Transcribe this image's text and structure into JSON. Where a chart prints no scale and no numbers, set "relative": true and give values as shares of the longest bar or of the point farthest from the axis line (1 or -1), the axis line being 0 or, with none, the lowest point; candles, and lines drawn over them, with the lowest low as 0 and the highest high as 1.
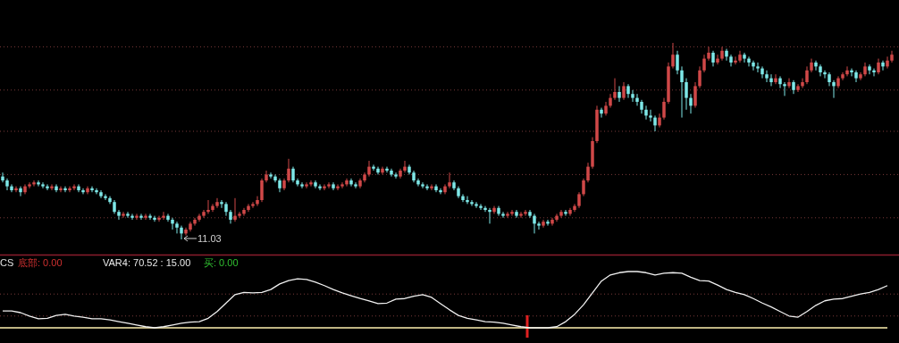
{
  "chart_data": [
    {
      "type": "candlestick",
      "relative": true,
      "ref_lines": [
        {
          "axis": "y",
          "value": 0.98,
          "color": "#7a3a3a",
          "line_style": "dotted"
        },
        {
          "axis": "y",
          "value": 0.76,
          "color": "#7a3a3a",
          "line_style": "dotted"
        },
        {
          "axis": "y",
          "value": 0.55,
          "color": "#7a3a3a",
          "line_style": "dotted"
        },
        {
          "axis": "y",
          "value": 0.33,
          "color": "#7a3a3a",
          "line_style": "dotted"
        },
        {
          "axis": "y",
          "value": 0.11,
          "color": "#7a3a3a",
          "line_style": "dotted"
        }
      ],
      "colors": [
        "#7ee8e8",
        "#7ee8e8",
        "#7ee8e8",
        "#d04848",
        "#7ee8e8",
        "#d04848",
        "#d04848",
        "#d04848",
        "#7ee8e8",
        "#7ee8e8",
        "#7ee8e8",
        "#d04848",
        "#7ee8e8",
        "#d04848",
        "#7ee8e8",
        "#d04848",
        "#d04848",
        "#7ee8e8",
        "#7ee8e8",
        "#d04848",
        "#7ee8e8",
        "#7ee8e8",
        "#7ee8e8",
        "#7ee8e8",
        "#7ee8e8",
        "#7ee8e8",
        "#7ee8e8",
        "#d04848",
        "#7ee8e8",
        "#7ee8e8",
        "#d04848",
        "#7ee8e8",
        "#d04848",
        "#7ee8e8",
        "#7ee8e8",
        "#d04848",
        "#d04848",
        "#7ee8e8",
        "#7ee8e8",
        "#7ee8e8",
        "#7ee8e8",
        "#d04848",
        "#d04848",
        "#d04848",
        "#d04848",
        "#d04848",
        "#d04848",
        "#d04848",
        "#d04848",
        "#7ee8e8",
        "#7ee8e8",
        "#7ee8e8",
        "#d04848",
        "#d04848",
        "#d04848",
        "#d04848",
        "#d04848",
        "#d04848",
        "#d04848",
        "#d04848",
        "#7ee8e8",
        "#7ee8e8",
        "#7ee8e8",
        "#d04848",
        "#d04848",
        "#7ee8e8",
        "#7ee8e8",
        "#7ee8e8",
        "#d04848",
        "#d04848",
        "#7ee8e8",
        "#7ee8e8",
        "#d04848",
        "#d04848",
        "#7ee8e8",
        "#d04848",
        "#d04848",
        "#d04848",
        "#7ee8e8",
        "#7ee8e8",
        "#d04848",
        "#d04848",
        "#d04848",
        "#7ee8e8",
        "#7ee8e8",
        "#d04848",
        "#7ee8e8",
        "#7ee8e8",
        "#7ee8e8",
        "#d04848",
        "#d04848",
        "#7ee8e8",
        "#7ee8e8",
        "#7ee8e8",
        "#7ee8e8",
        "#7ee8e8",
        "#d04848",
        "#7ee8e8",
        "#7ee8e8",
        "#d04848",
        "#d04848",
        "#7ee8e8",
        "#7ee8e8",
        "#7ee8e8",
        "#7ee8e8",
        "#7ee8e8",
        "#7ee8e8",
        "#7ee8e8",
        "#7ee8e8",
        "#7ee8e8",
        "#d04848",
        "#7ee8e8",
        "#7ee8e8",
        "#d04848",
        "#d04848",
        "#7ee8e8",
        "#d04848",
        "#d04848",
        "#7ee8e8",
        "#7ee8e8",
        "#7ee8e8",
        "#d04848",
        "#7ee8e8",
        "#d04848",
        "#d04848",
        "#d04848",
        "#7ee8e8",
        "#d04848",
        "#d04848",
        "#d04848",
        "#d04848",
        "#d04848",
        "#d04848",
        "#d04848",
        "#7ee8e8",
        "#d04848",
        "#d04848",
        "#d04848",
        "#7ee8e8",
        "#d04848",
        "#7ee8e8",
        "#7ee8e8",
        "#7ee8e8",
        "#7ee8e8",
        "#7ee8e8",
        "#7ee8e8",
        "#7ee8e8",
        "#d04848",
        "#d04848",
        "#d04848",
        "#d04848",
        "#7ee8e8",
        "#7ee8e8",
        "#7ee8e8",
        "#7ee8e8",
        "#d04848",
        "#d04848",
        "#d04848",
        "#d04848",
        "#7ee8e8",
        "#d04848",
        "#d04848",
        "#7ee8e8",
        "#7ee8e8",
        "#d04848",
        "#d04848",
        "#7ee8e8",
        "#7ee8e8",
        "#7ee8e8",
        "#7ee8e8",
        "#7ee8e8",
        "#7ee8e8",
        "#7ee8e8",
        "#d04848",
        "#7ee8e8",
        "#7ee8e8",
        "#d04848",
        "#7ee8e8",
        "#d04848",
        "#d04848",
        "#d04848",
        "#d04848",
        "#7ee8e8",
        "#7ee8e8",
        "#7ee8e8",
        "#7ee8e8",
        "#7ee8e8",
        "#d04848",
        "#d04848",
        "#d04848",
        "#7ee8e8",
        "#7ee8e8",
        "#d04848",
        "#d04848",
        "#7ee8e8",
        "#7ee8e8",
        "#d04848",
        "#7ee8e8",
        "#d04848",
        "#d04848"
      ],
      "categories": [
        null,
        null,
        null,
        null,
        null,
        null,
        null,
        null,
        null,
        null,
        null,
        null,
        null,
        null,
        null,
        null,
        null,
        null,
        null,
        null,
        null,
        null,
        null,
        null,
        null,
        null,
        null,
        null,
        null,
        null,
        null,
        null,
        null,
        null,
        null,
        null,
        null,
        null,
        null,
        null,
        null,
        null,
        null,
        null,
        null,
        null,
        null,
        null,
        null,
        null,
        null,
        null,
        null,
        null,
        null,
        null,
        null,
        null,
        null,
        null,
        null,
        null,
        null,
        null,
        null,
        null,
        null,
        null,
        null,
        null,
        null,
        null,
        null,
        null,
        null,
        null,
        null,
        null,
        null,
        null,
        null,
        null,
        null,
        null,
        null,
        null,
        null,
        null,
        null,
        null,
        null,
        null,
        null,
        null,
        null,
        null,
        null,
        null,
        null,
        null,
        null,
        null,
        null,
        null,
        null,
        null,
        null,
        null,
        null,
        null,
        null,
        null,
        null,
        null,
        null,
        null,
        null,
        null,
        null,
        null,
        null,
        null,
        null,
        null,
        null,
        null,
        null,
        null,
        null,
        null,
        null,
        null,
        null,
        null,
        null,
        null,
        null,
        null,
        null,
        null,
        null,
        null,
        null,
        null,
        null,
        null,
        null,
        null,
        null,
        null,
        null,
        null,
        null,
        null,
        null,
        null,
        null,
        null,
        null,
        null,
        null,
        null,
        null,
        null,
        null,
        null,
        null,
        null,
        null,
        null,
        null,
        null,
        null,
        null,
        null,
        null,
        null,
        null,
        null,
        null,
        null,
        null,
        null,
        null,
        null,
        null,
        null,
        null,
        null,
        null,
        null,
        null,
        null,
        null,
        null,
        null,
        null,
        null,
        null,
        null
      ],
      "ohlc": [
        [
          0.32,
          0.34,
          0.29,
          0.3
        ],
        [
          0.3,
          0.31,
          0.25,
          0.27
        ],
        [
          0.27,
          0.28,
          0.24,
          0.25
        ],
        [
          0.25,
          0.27,
          0.24,
          0.26
        ],
        [
          0.26,
          0.27,
          0.22,
          0.24
        ],
        [
          0.24,
          0.28,
          0.23,
          0.27
        ],
        [
          0.27,
          0.29,
          0.26,
          0.28
        ],
        [
          0.28,
          0.3,
          0.27,
          0.29
        ],
        [
          0.29,
          0.3,
          0.27,
          0.28
        ],
        [
          0.28,
          0.29,
          0.26,
          0.27
        ],
        [
          0.27,
          0.28,
          0.25,
          0.26
        ],
        [
          0.26,
          0.28,
          0.25,
          0.27
        ],
        [
          0.27,
          0.28,
          0.24,
          0.25
        ],
        [
          0.25,
          0.27,
          0.24,
          0.26
        ],
        [
          0.26,
          0.27,
          0.24,
          0.25
        ],
        [
          0.25,
          0.27,
          0.24,
          0.26
        ],
        [
          0.26,
          0.28,
          0.25,
          0.27
        ],
        [
          0.27,
          0.28,
          0.24,
          0.25
        ],
        [
          0.25,
          0.26,
          0.23,
          0.24
        ],
        [
          0.24,
          0.27,
          0.23,
          0.26
        ],
        [
          0.26,
          0.27,
          0.24,
          0.25
        ],
        [
          0.25,
          0.26,
          0.23,
          0.24
        ],
        [
          0.24,
          0.25,
          0.21,
          0.22
        ],
        [
          0.22,
          0.23,
          0.2,
          0.21
        ],
        [
          0.21,
          0.22,
          0.18,
          0.19
        ],
        [
          0.19,
          0.2,
          0.13,
          0.14
        ],
        [
          0.14,
          0.15,
          0.1,
          0.12
        ],
        [
          0.12,
          0.14,
          0.11,
          0.13
        ],
        [
          0.13,
          0.14,
          0.11,
          0.12
        ],
        [
          0.12,
          0.13,
          0.1,
          0.11
        ],
        [
          0.11,
          0.13,
          0.1,
          0.12
        ],
        [
          0.12,
          0.13,
          0.1,
          0.11
        ],
        [
          0.11,
          0.13,
          0.1,
          0.12
        ],
        [
          0.12,
          0.13,
          0.1,
          0.11
        ],
        [
          0.11,
          0.12,
          0.09,
          0.1
        ],
        [
          0.1,
          0.12,
          0.09,
          0.11
        ],
        [
          0.11,
          0.14,
          0.1,
          0.12
        ],
        [
          0.12,
          0.13,
          0.09,
          0.1
        ],
        [
          0.1,
          0.11,
          0.05,
          0.08
        ],
        [
          0.08,
          0.09,
          0.03,
          0.06
        ],
        [
          0.06,
          0.07,
          0.0,
          0.03
        ],
        [
          0.03,
          0.06,
          0.02,
          0.05
        ],
        [
          0.05,
          0.09,
          0.04,
          0.08
        ],
        [
          0.08,
          0.11,
          0.07,
          0.1
        ],
        [
          0.1,
          0.13,
          0.09,
          0.12
        ],
        [
          0.12,
          0.15,
          0.11,
          0.14
        ],
        [
          0.14,
          0.2,
          0.13,
          0.15
        ],
        [
          0.15,
          0.18,
          0.14,
          0.17
        ],
        [
          0.17,
          0.21,
          0.16,
          0.19
        ],
        [
          0.19,
          0.2,
          0.16,
          0.18
        ],
        [
          0.18,
          0.19,
          0.12,
          0.14
        ],
        [
          0.14,
          0.15,
          0.08,
          0.1
        ],
        [
          0.1,
          0.21,
          0.09,
          0.12
        ],
        [
          0.12,
          0.14,
          0.11,
          0.13
        ],
        [
          0.13,
          0.16,
          0.12,
          0.15
        ],
        [
          0.15,
          0.18,
          0.14,
          0.17
        ],
        [
          0.17,
          0.19,
          0.16,
          0.18
        ],
        [
          0.18,
          0.22,
          0.17,
          0.2
        ],
        [
          0.2,
          0.31,
          0.19,
          0.3
        ],
        [
          0.3,
          0.35,
          0.29,
          0.33
        ],
        [
          0.33,
          0.34,
          0.31,
          0.32
        ],
        [
          0.32,
          0.33,
          0.29,
          0.3
        ],
        [
          0.3,
          0.31,
          0.24,
          0.26
        ],
        [
          0.26,
          0.31,
          0.25,
          0.3
        ],
        [
          0.3,
          0.41,
          0.29,
          0.36
        ],
        [
          0.36,
          0.37,
          0.29,
          0.3
        ],
        [
          0.3,
          0.31,
          0.27,
          0.28
        ],
        [
          0.28,
          0.29,
          0.26,
          0.27
        ],
        [
          0.27,
          0.29,
          0.26,
          0.28
        ],
        [
          0.28,
          0.3,
          0.27,
          0.29
        ],
        [
          0.29,
          0.3,
          0.26,
          0.27
        ],
        [
          0.27,
          0.28,
          0.25,
          0.26
        ],
        [
          0.26,
          0.28,
          0.25,
          0.27
        ],
        [
          0.27,
          0.29,
          0.26,
          0.28
        ],
        [
          0.28,
          0.29,
          0.25,
          0.26
        ],
        [
          0.26,
          0.28,
          0.25,
          0.27
        ],
        [
          0.27,
          0.29,
          0.26,
          0.28
        ],
        [
          0.28,
          0.31,
          0.27,
          0.3
        ],
        [
          0.3,
          0.31,
          0.27,
          0.28
        ],
        [
          0.28,
          0.29,
          0.26,
          0.27
        ],
        [
          0.27,
          0.31,
          0.26,
          0.3
        ],
        [
          0.3,
          0.34,
          0.29,
          0.33
        ],
        [
          0.33,
          0.4,
          0.32,
          0.37
        ],
        [
          0.37,
          0.38,
          0.35,
          0.36
        ],
        [
          0.36,
          0.37,
          0.33,
          0.34
        ],
        [
          0.34,
          0.37,
          0.33,
          0.36
        ],
        [
          0.36,
          0.37,
          0.34,
          0.35
        ],
        [
          0.35,
          0.36,
          0.32,
          0.33
        ],
        [
          0.33,
          0.34,
          0.31,
          0.32
        ],
        [
          0.32,
          0.36,
          0.31,
          0.35
        ],
        [
          0.35,
          0.4,
          0.34,
          0.37
        ],
        [
          0.37,
          0.38,
          0.33,
          0.34
        ],
        [
          0.34,
          0.35,
          0.29,
          0.3
        ],
        [
          0.3,
          0.31,
          0.27,
          0.28
        ],
        [
          0.28,
          0.29,
          0.26,
          0.27
        ],
        [
          0.27,
          0.28,
          0.25,
          0.26
        ],
        [
          0.26,
          0.28,
          0.25,
          0.27
        ],
        [
          0.27,
          0.28,
          0.24,
          0.25
        ],
        [
          0.25,
          0.26,
          0.23,
          0.24
        ],
        [
          0.24,
          0.28,
          0.23,
          0.27
        ],
        [
          0.27,
          0.34,
          0.26,
          0.29
        ],
        [
          0.29,
          0.3,
          0.25,
          0.26
        ],
        [
          0.26,
          0.27,
          0.21,
          0.22
        ],
        [
          0.22,
          0.23,
          0.19,
          0.2
        ],
        [
          0.2,
          0.22,
          0.18,
          0.19
        ],
        [
          0.19,
          0.2,
          0.17,
          0.18
        ],
        [
          0.18,
          0.19,
          0.16,
          0.17
        ],
        [
          0.17,
          0.18,
          0.15,
          0.16
        ],
        [
          0.16,
          0.17,
          0.14,
          0.15
        ],
        [
          0.15,
          0.16,
          0.08,
          0.14
        ],
        [
          0.14,
          0.17,
          0.13,
          0.16
        ],
        [
          0.16,
          0.17,
          0.12,
          0.13
        ],
        [
          0.13,
          0.14,
          0.11,
          0.12
        ],
        [
          0.12,
          0.14,
          0.11,
          0.13
        ],
        [
          0.13,
          0.15,
          0.12,
          0.14
        ],
        [
          0.14,
          0.15,
          0.11,
          0.12
        ],
        [
          0.12,
          0.14,
          0.11,
          0.13
        ],
        [
          0.13,
          0.15,
          0.12,
          0.14
        ],
        [
          0.14,
          0.15,
          0.11,
          0.12
        ],
        [
          0.12,
          0.13,
          0.03,
          0.08
        ],
        [
          0.08,
          0.09,
          0.05,
          0.07
        ],
        [
          0.07,
          0.1,
          0.06,
          0.09
        ],
        [
          0.09,
          0.1,
          0.07,
          0.08
        ],
        [
          0.08,
          0.11,
          0.07,
          0.1
        ],
        [
          0.1,
          0.13,
          0.09,
          0.12
        ],
        [
          0.12,
          0.15,
          0.11,
          0.14
        ],
        [
          0.14,
          0.15,
          0.12,
          0.13
        ],
        [
          0.13,
          0.16,
          0.12,
          0.15
        ],
        [
          0.15,
          0.18,
          0.14,
          0.17
        ],
        [
          0.17,
          0.24,
          0.16,
          0.23
        ],
        [
          0.23,
          0.31,
          0.22,
          0.3
        ],
        [
          0.3,
          0.39,
          0.29,
          0.37
        ],
        [
          0.37,
          0.52,
          0.36,
          0.5
        ],
        [
          0.5,
          0.68,
          0.49,
          0.66
        ],
        [
          0.66,
          0.67,
          0.62,
          0.64
        ],
        [
          0.64,
          0.7,
          0.63,
          0.68
        ],
        [
          0.68,
          0.74,
          0.67,
          0.72
        ],
        [
          0.72,
          0.82,
          0.71,
          0.75
        ],
        [
          0.75,
          0.78,
          0.7,
          0.72
        ],
        [
          0.72,
          0.8,
          0.71,
          0.78
        ],
        [
          0.78,
          0.79,
          0.72,
          0.74
        ],
        [
          0.74,
          0.76,
          0.7,
          0.72
        ],
        [
          0.72,
          0.74,
          0.68,
          0.7
        ],
        [
          0.7,
          0.71,
          0.64,
          0.66
        ],
        [
          0.66,
          0.68,
          0.61,
          0.63
        ],
        [
          0.63,
          0.66,
          0.6,
          0.62
        ],
        [
          0.62,
          0.63,
          0.55,
          0.58
        ],
        [
          0.58,
          0.64,
          0.57,
          0.62
        ],
        [
          0.62,
          0.72,
          0.61,
          0.7
        ],
        [
          0.7,
          0.9,
          0.69,
          0.88
        ],
        [
          0.88,
          1.0,
          0.87,
          0.94
        ],
        [
          0.94,
          0.96,
          0.84,
          0.86
        ],
        [
          0.86,
          0.88,
          0.62,
          0.8
        ],
        [
          0.8,
          0.82,
          0.66,
          0.72
        ],
        [
          0.72,
          0.74,
          0.64,
          0.68
        ],
        [
          0.68,
          0.8,
          0.67,
          0.78
        ],
        [
          0.78,
          0.88,
          0.77,
          0.86
        ],
        [
          0.86,
          0.94,
          0.85,
          0.92
        ],
        [
          0.92,
          0.98,
          0.91,
          0.95
        ],
        [
          0.95,
          0.96,
          0.88,
          0.9
        ],
        [
          0.9,
          0.94,
          0.89,
          0.92
        ],
        [
          0.92,
          0.98,
          0.91,
          0.96
        ],
        [
          0.96,
          0.97,
          0.91,
          0.93
        ],
        [
          0.93,
          0.94,
          0.88,
          0.9
        ],
        [
          0.9,
          0.93,
          0.89,
          0.91
        ],
        [
          0.91,
          0.96,
          0.9,
          0.94
        ],
        [
          0.94,
          0.95,
          0.9,
          0.92
        ],
        [
          0.92,
          0.93,
          0.88,
          0.9
        ],
        [
          0.9,
          0.91,
          0.86,
          0.88
        ],
        [
          0.88,
          0.9,
          0.85,
          0.87
        ],
        [
          0.87,
          0.88,
          0.82,
          0.84
        ],
        [
          0.84,
          0.86,
          0.8,
          0.82
        ],
        [
          0.82,
          0.84,
          0.78,
          0.8
        ],
        [
          0.8,
          0.84,
          0.79,
          0.82
        ],
        [
          0.82,
          0.83,
          0.77,
          0.79
        ],
        [
          0.79,
          0.8,
          0.73,
          0.78
        ],
        [
          0.78,
          0.82,
          0.77,
          0.8
        ],
        [
          0.8,
          0.81,
          0.74,
          0.76
        ],
        [
          0.76,
          0.79,
          0.75,
          0.78
        ],
        [
          0.78,
          0.82,
          0.77,
          0.8
        ],
        [
          0.8,
          0.88,
          0.79,
          0.86
        ],
        [
          0.86,
          0.92,
          0.85,
          0.9
        ],
        [
          0.9,
          0.91,
          0.86,
          0.88
        ],
        [
          0.88,
          0.89,
          0.83,
          0.85
        ],
        [
          0.85,
          0.86,
          0.82,
          0.84
        ],
        [
          0.84,
          0.85,
          0.78,
          0.8
        ],
        [
          0.8,
          0.81,
          0.72,
          0.78
        ],
        [
          0.78,
          0.83,
          0.77,
          0.82
        ],
        [
          0.82,
          0.85,
          0.81,
          0.84
        ],
        [
          0.84,
          0.88,
          0.83,
          0.86
        ],
        [
          0.86,
          0.87,
          0.83,
          0.85
        ],
        [
          0.85,
          0.86,
          0.8,
          0.82
        ],
        [
          0.82,
          0.85,
          0.81,
          0.84
        ],
        [
          0.84,
          0.9,
          0.83,
          0.88
        ],
        [
          0.88,
          0.89,
          0.84,
          0.86
        ],
        [
          0.86,
          0.87,
          0.83,
          0.85
        ],
        [
          0.85,
          0.92,
          0.84,
          0.9
        ],
        [
          0.9,
          0.91,
          0.86,
          0.88
        ],
        [
          0.88,
          0.93,
          0.87,
          0.91
        ],
        [
          0.91,
          0.96,
          0.9,
          0.94
        ]
      ],
      "annotations": [
        "11.03"
      ]
    },
    {
      "type": "line",
      "relative": true,
      "ref_lines": [
        {
          "axis": "y",
          "value": 0.6,
          "color": "#7a3a3a",
          "line_style": "dotted"
        },
        {
          "axis": "y",
          "value": 0.21,
          "color": "#7a3a3a",
          "line_style": "dotted"
        }
      ],
      "categories": [
        null,
        null,
        null,
        null,
        null,
        null,
        null,
        null,
        null,
        null,
        null,
        null,
        null,
        null,
        null,
        null,
        null,
        null,
        null,
        null,
        null,
        null,
        null,
        null,
        null,
        null,
        null,
        null,
        null,
        null,
        null,
        null,
        null,
        null,
        null,
        null,
        null,
        null,
        null,
        null,
        null,
        null,
        null,
        null,
        null,
        null,
        null,
        null,
        null,
        null,
        null,
        null,
        null,
        null,
        null,
        null,
        null,
        null,
        null,
        null,
        null,
        null,
        null,
        null,
        null,
        null,
        null,
        null,
        null,
        null,
        null,
        null,
        null,
        null,
        null,
        null,
        null,
        null,
        null,
        null,
        null,
        null,
        null,
        null,
        null,
        null,
        null,
        null,
        null,
        null,
        null,
        null,
        null,
        null,
        null,
        null,
        null,
        null,
        null,
        null
      ],
      "series": [
        {
          "color": "#f0f0f0",
          "values": [
            0.3,
            0.3,
            0.27,
            0.21,
            0.16,
            0.17,
            0.22,
            0.24,
            0.21,
            0.19,
            0.16,
            0.16,
            0.14,
            0.11,
            0.08,
            0.05,
            0.02,
            0.0,
            0.02,
            0.05,
            0.08,
            0.1,
            0.11,
            0.17,
            0.29,
            0.44,
            0.59,
            0.63,
            0.62,
            0.63,
            0.68,
            0.78,
            0.84,
            0.87,
            0.86,
            0.81,
            0.75,
            0.68,
            0.62,
            0.57,
            0.52,
            0.48,
            0.43,
            0.44,
            0.51,
            0.52,
            0.56,
            0.59,
            0.54,
            0.43,
            0.32,
            0.22,
            0.17,
            0.14,
            0.11,
            0.1,
            0.08,
            0.05,
            0.02,
            0.0,
            0.0,
            0.0,
            0.02,
            0.11,
            0.24,
            0.41,
            0.62,
            0.83,
            0.94,
            0.98,
            1.0,
            1.0,
            0.98,
            0.94,
            0.97,
            0.98,
            0.97,
            0.9,
            0.84,
            0.83,
            0.76,
            0.68,
            0.63,
            0.59,
            0.52,
            0.44,
            0.37,
            0.29,
            0.21,
            0.19,
            0.29,
            0.4,
            0.48,
            0.51,
            0.52,
            0.56,
            0.6,
            0.63,
            0.68,
            0.75
          ]
        }
      ],
      "annotations": [
        "CS",
        "底部: 0.00",
        "VAR4: 70.52 : 15.00",
        "买: 0.00"
      ]
    }
  ]
}
